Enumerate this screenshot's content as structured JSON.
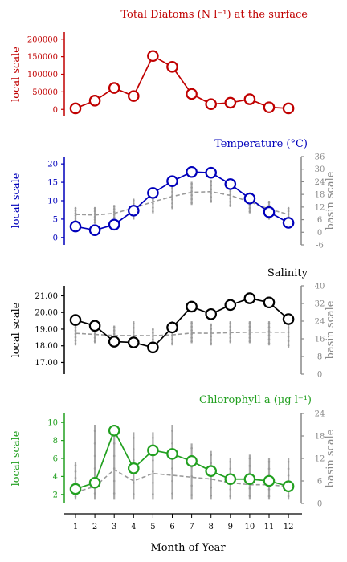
{
  "chart_data": [
    {
      "type": "line",
      "title": "Total Diatoms (N l⁻¹) at the surface",
      "ylabel": "local scale",
      "color": "#c00000",
      "ylim": [
        -20000,
        220000
      ],
      "yticks": [
        0,
        50000,
        100000,
        150000,
        200000
      ],
      "ytick_labels": [
        "0",
        "50000",
        "100000",
        "150000",
        "200000"
      ],
      "x": [
        1,
        2,
        3,
        4,
        5,
        6,
        7,
        8,
        9,
        10,
        11,
        12
      ],
      "series": [
        {
          "values": [
            3000,
            25000,
            61000,
            38000,
            152000,
            121000,
            44000,
            15000,
            19000,
            29000,
            6000,
            3000
          ]
        }
      ]
    },
    {
      "type": "line",
      "title": "Temperature (°C)",
      "ylabel": "local scale",
      "ylabel2": "basin scale",
      "color": "#0000bb",
      "ylim": [
        -2,
        22
      ],
      "yticks": [
        0,
        5,
        10,
        15,
        20
      ],
      "ytick_labels": [
        "0",
        "5",
        "10",
        "15",
        "20"
      ],
      "y2lim": [
        -6,
        36
      ],
      "y2ticks": [
        -6,
        0,
        6,
        12,
        18,
        24,
        30,
        36
      ],
      "y2tick_labels": [
        "-6",
        "0",
        "6",
        "12",
        "18",
        "24",
        "30",
        "36"
      ],
      "x": [
        1,
        2,
        3,
        4,
        5,
        6,
        7,
        8,
        9,
        10,
        11,
        12
      ],
      "series": [
        {
          "values": [
            3.0,
            2.0,
            3.5,
            7.3,
            12.1,
            15.3,
            17.8,
            17.6,
            14.5,
            10.6,
            6.9,
            4.0
          ]
        }
      ],
      "basin_mean": [
        8.5,
        8.2,
        9.0,
        11.5,
        14.5,
        17.0,
        19.0,
        19.3,
        17.5,
        14.5,
        11.0,
        8.5
      ],
      "basin_range": [
        [
          5,
          12
        ],
        [
          4,
          12
        ],
        [
          5,
          13
        ],
        [
          6,
          16
        ],
        [
          9,
          20
        ],
        [
          11,
          22
        ],
        [
          13,
          24
        ],
        [
          14,
          25
        ],
        [
          12,
          22
        ],
        [
          9,
          19
        ],
        [
          6,
          15
        ],
        [
          4,
          12
        ]
      ]
    },
    {
      "type": "line",
      "title": "Salinity",
      "ylabel": "local scale",
      "ylabel2": "basin scale",
      "color": "#000000",
      "ylim": [
        16.3,
        21.6
      ],
      "yticks": [
        17,
        18,
        19,
        20,
        21
      ],
      "ytick_labels": [
        "17.00",
        "18.00",
        "19.00",
        "20.00",
        "21.00"
      ],
      "y2lim": [
        0,
        40
      ],
      "y2ticks": [
        0,
        8,
        16,
        24,
        32,
        40
      ],
      "y2tick_labels": [
        "0",
        "8",
        "16",
        "24",
        "32",
        "40"
      ],
      "x": [
        1,
        2,
        3,
        4,
        5,
        6,
        7,
        8,
        9,
        10,
        11,
        12
      ],
      "series": [
        {
          "values": [
            19.55,
            19.2,
            18.25,
            18.2,
            17.9,
            19.1,
            20.35,
            19.9,
            20.45,
            20.85,
            20.6,
            19.6
          ]
        }
      ],
      "basin_mean": [
        18.5,
        18.0,
        17.5,
        17.5,
        17.4,
        17.8,
        18.6,
        18.5,
        18.8,
        19.0,
        19.0,
        19.0
      ],
      "basin_range": [
        [
          13,
          22
        ],
        [
          14,
          24
        ],
        [
          13,
          22
        ],
        [
          12,
          24
        ],
        [
          12,
          21
        ],
        [
          13,
          24
        ],
        [
          14,
          24
        ],
        [
          13,
          23
        ],
        [
          14,
          24
        ],
        [
          14,
          24
        ],
        [
          13,
          24
        ],
        [
          12,
          24
        ]
      ]
    },
    {
      "type": "line",
      "title": "Chlorophyll a (µg l⁻¹)",
      "ylabel": "local scale",
      "ylabel2": "basin scale",
      "color": "#22a020",
      "ylim": [
        1,
        11
      ],
      "yticks": [
        2,
        4,
        6,
        8,
        10
      ],
      "ytick_labels": [
        "2",
        "4",
        "6",
        "8",
        "10"
      ],
      "y2lim": [
        0,
        24
      ],
      "y2ticks": [
        0,
        6,
        12,
        18,
        24
      ],
      "y2tick_labels": [
        "0",
        "6",
        "12",
        "18",
        "24"
      ],
      "x": [
        1,
        2,
        3,
        4,
        5,
        6,
        7,
        8,
        9,
        10,
        11,
        12
      ],
      "series": [
        {
          "values": [
            2.6,
            3.3,
            9.1,
            4.9,
            6.9,
            6.5,
            5.7,
            4.6,
            3.7,
            3.7,
            3.5,
            2.9
          ]
        }
      ],
      "basin_mean": [
        3.0,
        4.5,
        9.0,
        6.0,
        8.0,
        7.5,
        7.0,
        6.5,
        5.5,
        5.0,
        5.0,
        4.5
      ],
      "basin_range": [
        [
          1,
          11
        ],
        [
          1,
          21
        ],
        [
          1,
          21
        ],
        [
          1,
          19
        ],
        [
          1,
          19
        ],
        [
          1,
          21
        ],
        [
          1,
          16
        ],
        [
          1,
          14
        ],
        [
          1,
          12
        ],
        [
          1,
          13
        ],
        [
          1,
          12
        ],
        [
          1,
          12
        ]
      ]
    }
  ],
  "x_axis": {
    "label": "Month of Year",
    "ticks": [
      "1",
      "2",
      "3",
      "4",
      "5",
      "6",
      "7",
      "8",
      "9",
      "10",
      "11",
      "12"
    ]
  }
}
